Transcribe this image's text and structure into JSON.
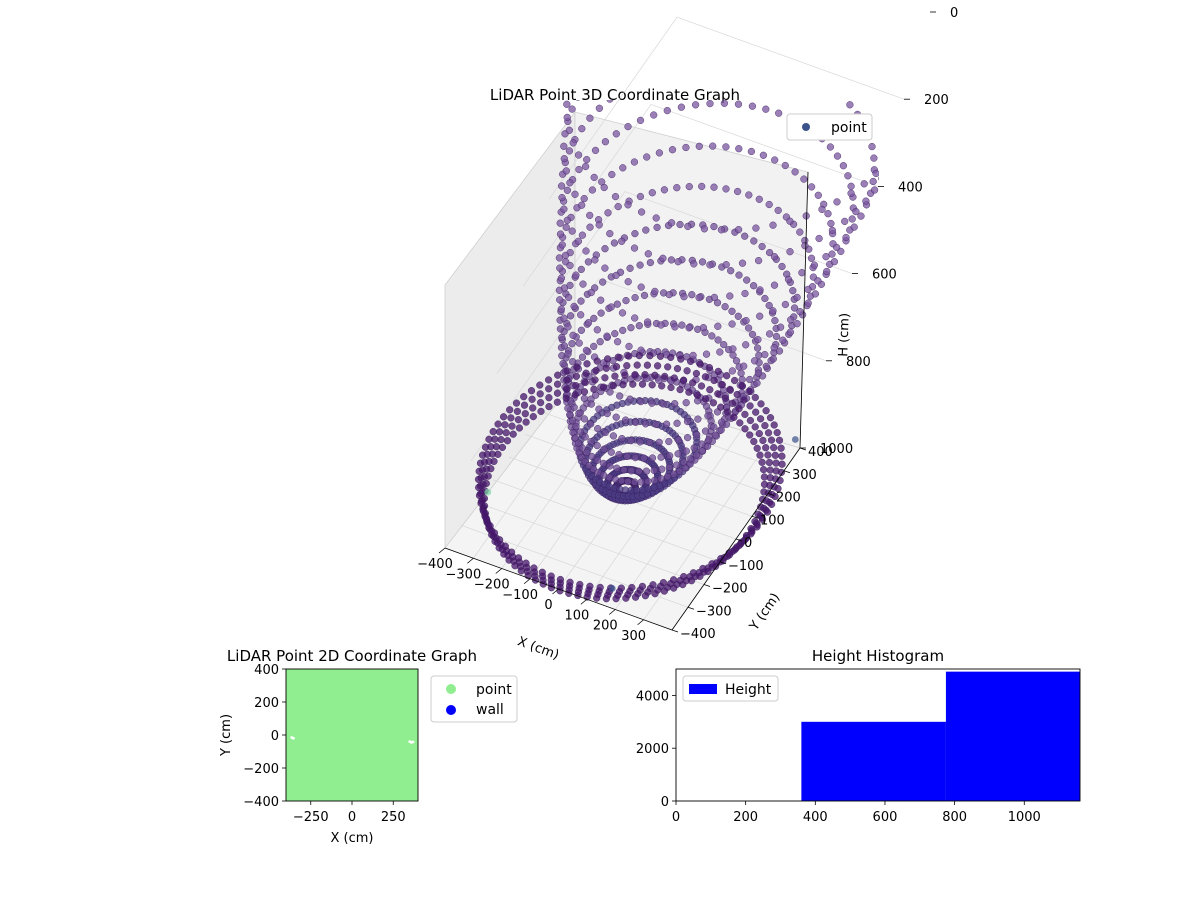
{
  "figure": {
    "charts": [
      "3d",
      "2d",
      "hist"
    ]
  },
  "chart_data": [
    {
      "type": "scatter",
      "projection": "3d",
      "title": "LiDAR Point 3D Coordinate Graph",
      "xlabel": "X (cm)",
      "ylabel": "Y (cm)",
      "zlabel": "H (cm)",
      "xlim": [
        -400,
        400
      ],
      "ylim": [
        -400,
        400
      ],
      "zlim": [
        0,
        1000
      ],
      "z_inverted": true,
      "x_ticks": [
        "−400",
        "−300",
        "−200",
        "−100",
        "0",
        "100",
        "200",
        "300"
      ],
      "y_ticks": [
        "−400",
        "−300",
        "−200",
        "−100",
        "0",
        "100",
        "200",
        "300",
        "400"
      ],
      "z_ticks": [
        "0",
        "200",
        "400",
        "600",
        "800",
        "1000"
      ],
      "legend": [
        {
          "label": "point",
          "color": "#3b528b"
        }
      ],
      "legend_position": "top-right",
      "colormap": "viridis (dark purple)",
      "description_shape": "bowl",
      "outliers": [
        {
          "x": -390,
          "y": -150,
          "z": 1000,
          "color": "#7ad3a4"
        },
        {
          "x": 380,
          "y": 390,
          "z": 980,
          "color": "#3b528b"
        },
        {
          "x": 150,
          "y": -330,
          "z": 1000,
          "color": "#3b528b"
        }
      ]
    },
    {
      "type": "scatter",
      "title": "LiDAR Point 2D Coordinate Graph",
      "xlabel": "X (cm)",
      "ylabel": "Y (cm)",
      "xlim": [
        -400,
        400
      ],
      "ylim": [
        -400,
        400
      ],
      "x_ticks": [
        "−250",
        "0",
        "250"
      ],
      "y_ticks": [
        "400",
        "200",
        "0",
        "−200",
        "−400"
      ],
      "legend": [
        {
          "label": "point",
          "color": "#90ee90"
        },
        {
          "label": "wall",
          "color": "#0000ff"
        }
      ],
      "legend_position": "outside right"
    },
    {
      "type": "bar",
      "title": "Height Histogram",
      "xlabel": "",
      "ylabel": "",
      "xlim": [
        0,
        1160
      ],
      "ylim": [
        0,
        5000
      ],
      "x_ticks": [
        "0",
        "200",
        "400",
        "600",
        "800",
        "1000"
      ],
      "y_ticks": [
        "0",
        "2000",
        "4000"
      ],
      "bins": [
        {
          "start": 0,
          "end": 360,
          "value": 0
        },
        {
          "start": 360,
          "end": 775,
          "value": 3000
        },
        {
          "start": 775,
          "end": 1160,
          "value": 4900
        }
      ],
      "legend": [
        {
          "label": "Height",
          "color": "#0000ff"
        }
      ],
      "legend_position": "top-left",
      "color": "#0000ff"
    }
  ]
}
